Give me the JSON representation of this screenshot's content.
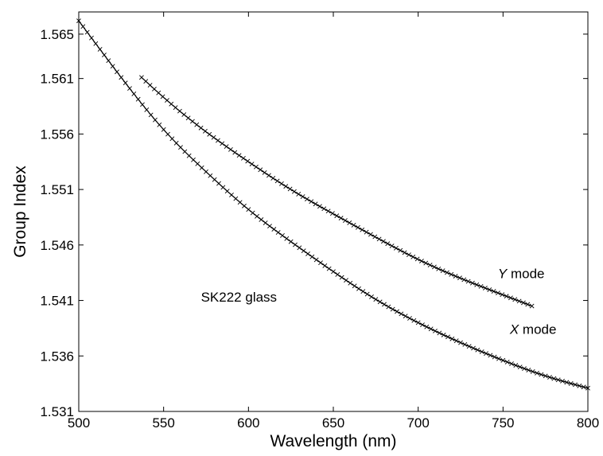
{
  "chart_data": {
    "type": "line",
    "title": "",
    "xlabel": "Wavelength (nm)",
    "ylabel": "Group Index",
    "xlim": [
      500,
      800
    ],
    "ylim": [
      1.531,
      1.567
    ],
    "xticks": [
      500,
      550,
      600,
      650,
      700,
      750,
      800
    ],
    "xtick_labels": [
      "500",
      "550",
      "600",
      "650",
      "700",
      "750",
      "800"
    ],
    "yticks": [
      1.531,
      1.536,
      1.541,
      1.546,
      1.551,
      1.556,
      1.561,
      1.565
    ],
    "ytick_labels": [
      "1.531",
      "1.536",
      "1.541",
      "1.546",
      "1.551",
      "1.556",
      "1.561",
      "1.565"
    ],
    "grid": false,
    "series": [
      {
        "name": "X mode",
        "style": "solid fit line with x markers",
        "color": "#000000",
        "x": [
          500,
          525,
          550,
          575,
          600,
          625,
          650,
          675,
          700,
          725,
          750,
          775,
          800
        ],
        "y": [
          1.5662,
          1.5611,
          1.5564,
          1.5526,
          1.5492,
          1.5463,
          1.5436,
          1.5411,
          1.539,
          1.5372,
          1.5356,
          1.5342,
          1.5331
        ]
      },
      {
        "name": "Y mode",
        "style": "solid fit line with x markers",
        "color": "#000000",
        "x": [
          537,
          550,
          575,
          600,
          625,
          650,
          675,
          700,
          725,
          750,
          767
        ],
        "y": [
          1.5611,
          1.5593,
          1.5562,
          1.5535,
          1.551,
          1.5488,
          1.5467,
          1.5447,
          1.543,
          1.5415,
          1.5405
        ]
      }
    ],
    "annotations": [
      {
        "text": "SK222 glass",
        "x": 572,
        "y": 1.5409
      },
      {
        "text": "Y",
        "style": "italic",
        "suffix": " mode",
        "x": 747,
        "y": 1.543
      },
      {
        "text": "X",
        "style": "italic",
        "suffix": " mode",
        "x": 754,
        "y": 1.538
      }
    ]
  }
}
